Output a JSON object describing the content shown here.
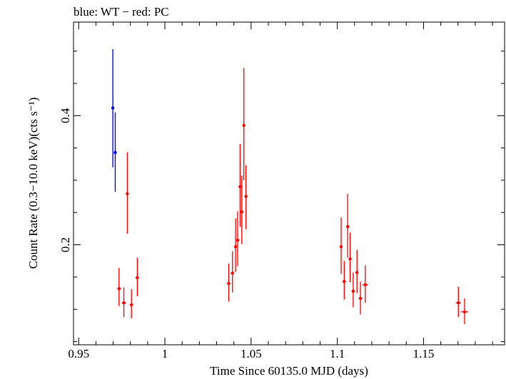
{
  "chart_data": {
    "type": "scatter",
    "title": "blue: WT − red: PC",
    "xlabel": "Time Since 60135.0 MJD (days)",
    "ylabel": "Count Rate (0.3−10.0 keV)(cts s⁻¹)",
    "xlim": [
      0.947,
      1.197
    ],
    "ylim": [
      0.045,
      0.545
    ],
    "x_ticks": [
      {
        "value": 0.95,
        "label": "0.95"
      },
      {
        "value": 1.0,
        "label": "1"
      },
      {
        "value": 1.05,
        "label": "1.05"
      },
      {
        "value": 1.1,
        "label": "1.1"
      },
      {
        "value": 1.15,
        "label": "1.15"
      }
    ],
    "y_ticks": [
      {
        "value": 0.2,
        "label": "0.2"
      },
      {
        "value": 0.4,
        "label": "0.4"
      }
    ],
    "grid": false,
    "series": [
      {
        "name": "WT",
        "color": "#0000ff",
        "points": [
          {
            "x": 0.9698,
            "y": 0.412,
            "ylo": 0.32,
            "yhi": 0.503,
            "xerr": 0.0002
          },
          {
            "x": 0.9712,
            "y": 0.343,
            "ylo": 0.282,
            "yhi": 0.405,
            "xerr": 0.0002
          }
        ]
      },
      {
        "name": "PC",
        "color": "#ff0000",
        "points": [
          {
            "x": 0.9734,
            "y": 0.132,
            "ylo": 0.105,
            "yhi": 0.164,
            "xerr": 0.001
          },
          {
            "x": 0.9762,
            "y": 0.11,
            "ylo": 0.088,
            "yhi": 0.134,
            "xerr": 0.0012
          },
          {
            "x": 0.9782,
            "y": 0.279,
            "ylo": 0.217,
            "yhi": 0.343,
            "xerr": 0.0004
          },
          {
            "x": 0.9806,
            "y": 0.107,
            "ylo": 0.086,
            "yhi": 0.131,
            "xerr": 0.001
          },
          {
            "x": 0.984,
            "y": 0.149,
            "ylo": 0.12,
            "yhi": 0.18,
            "xerr": 0.001
          },
          {
            "x": 1.037,
            "y": 0.14,
            "ylo": 0.112,
            "yhi": 0.171,
            "xerr": 0.001
          },
          {
            "x": 1.0392,
            "y": 0.156,
            "ylo": 0.126,
            "yhi": 0.19,
            "xerr": 0.001
          },
          {
            "x": 1.041,
            "y": 0.197,
            "ylo": 0.158,
            "yhi": 0.241,
            "xerr": 0.0008
          },
          {
            "x": 1.0422,
            "y": 0.207,
            "ylo": 0.167,
            "yhi": 0.252,
            "xerr": 0.0008
          },
          {
            "x": 1.0436,
            "y": 0.29,
            "ylo": 0.228,
            "yhi": 0.356,
            "xerr": 0.0006
          },
          {
            "x": 1.0446,
            "y": 0.251,
            "ylo": 0.201,
            "yhi": 0.307,
            "xerr": 0.0006
          },
          {
            "x": 1.0458,
            "y": 0.385,
            "ylo": 0.3,
            "yhi": 0.474,
            "xerr": 0.0005
          },
          {
            "x": 1.047,
            "y": 0.275,
            "ylo": 0.224,
            "yhi": 0.323,
            "xerr": 0.0006
          },
          {
            "x": 1.1022,
            "y": 0.197,
            "ylo": 0.155,
            "yhi": 0.242,
            "xerr": 0.0008
          },
          {
            "x": 1.104,
            "y": 0.143,
            "ylo": 0.115,
            "yhi": 0.175,
            "xerr": 0.001
          },
          {
            "x": 1.106,
            "y": 0.228,
            "ylo": 0.18,
            "yhi": 0.279,
            "xerr": 0.0006
          },
          {
            "x": 1.1074,
            "y": 0.178,
            "ylo": 0.142,
            "yhi": 0.219,
            "xerr": 0.0008
          },
          {
            "x": 1.1092,
            "y": 0.128,
            "ylo": 0.103,
            "yhi": 0.157,
            "xerr": 0.001
          },
          {
            "x": 1.1114,
            "y": 0.157,
            "ylo": 0.125,
            "yhi": 0.192,
            "xerr": 0.0008
          },
          {
            "x": 1.1134,
            "y": 0.117,
            "ylo": 0.092,
            "yhi": 0.143,
            "xerr": 0.001
          },
          {
            "x": 1.1162,
            "y": 0.138,
            "ylo": 0.11,
            "yhi": 0.168,
            "xerr": 0.0016
          },
          {
            "x": 1.1702,
            "y": 0.11,
            "ylo": 0.088,
            "yhi": 0.135,
            "xerr": 0.0015
          },
          {
            "x": 1.1738,
            "y": 0.096,
            "ylo": 0.077,
            "yhi": 0.117,
            "xerr": 0.0022
          }
        ]
      }
    ]
  }
}
